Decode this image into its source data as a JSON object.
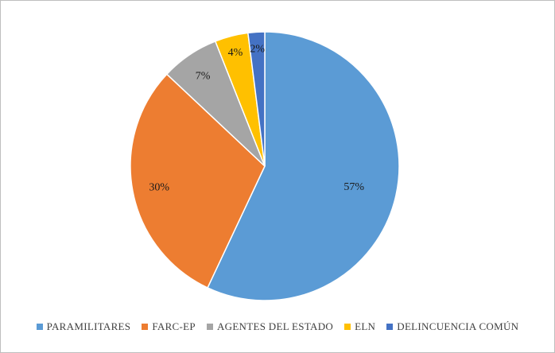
{
  "chart_data": {
    "type": "pie",
    "title": "",
    "categories": [
      "PARAMILITARES",
      "FARC-EP",
      "AGENTES DEL ESTADO",
      "ELN",
      "DELINCUENCIA COMÚN"
    ],
    "values": [
      57,
      30,
      7,
      4,
      2
    ],
    "labels": [
      "57%",
      "30%",
      "7%",
      "4%",
      "2%"
    ],
    "colors": [
      "#5b9bd5",
      "#ed7d31",
      "#a5a5a5",
      "#ffc000",
      "#4472c4"
    ],
    "legend": "bottom",
    "start_angle": "12 o'clock",
    "direction": "clockwise"
  }
}
